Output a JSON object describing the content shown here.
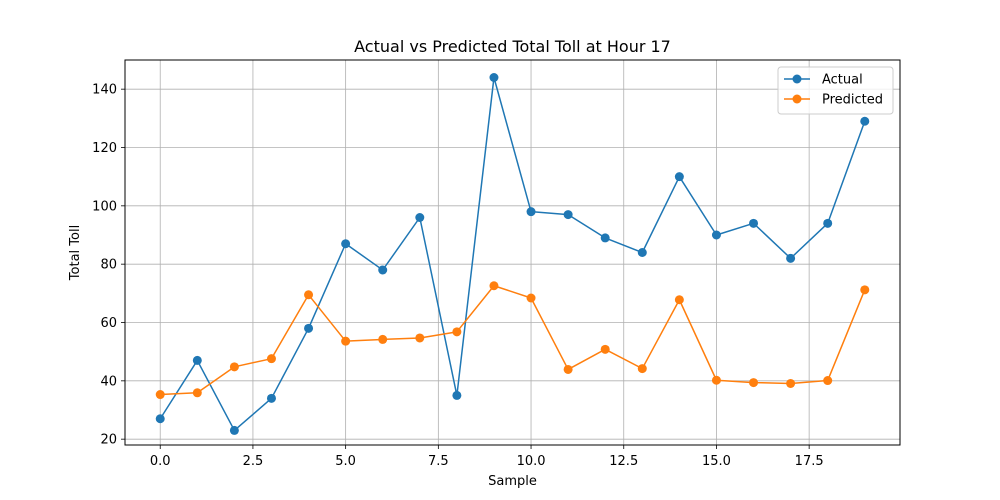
{
  "chart_data": {
    "type": "line",
    "title": "Actual vs Predicted Total Toll at Hour 17",
    "xlabel": "Sample",
    "ylabel": "Total Toll",
    "xlim": [
      -0.95,
      19.95
    ],
    "ylim": [
      18.0,
      150.0
    ],
    "xticks": [
      0.0,
      2.5,
      5.0,
      7.5,
      10.0,
      12.5,
      15.0,
      17.5
    ],
    "xtick_labels": [
      "0.0",
      "2.5",
      "5.0",
      "7.5",
      "10.0",
      "12.5",
      "15.0",
      "17.5"
    ],
    "yticks": [
      20,
      40,
      60,
      80,
      100,
      120,
      140
    ],
    "ytick_labels": [
      "20",
      "40",
      "60",
      "80",
      "100",
      "120",
      "140"
    ],
    "grid": true,
    "legend_position": "top-right",
    "x": [
      0,
      1,
      2,
      3,
      4,
      5,
      6,
      7,
      8,
      9,
      10,
      11,
      12,
      13,
      14,
      15,
      16,
      17,
      18,
      19
    ],
    "series": [
      {
        "name": "Actual",
        "color": "#1f77b4",
        "values": [
          27,
          47,
          23,
          34,
          58,
          87,
          78,
          96,
          35,
          144,
          98,
          97,
          89,
          84,
          110,
          90,
          94,
          82,
          94,
          129
        ]
      },
      {
        "name": "Predicted",
        "color": "#ff7f0e",
        "values": [
          35.3,
          35.9,
          44.8,
          47.6,
          69.5,
          53.6,
          54.2,
          54.7,
          56.8,
          72.6,
          68.4,
          43.9,
          50.8,
          44.2,
          67.8,
          40.2,
          39.4,
          39.1,
          40.1,
          71.2
        ]
      }
    ]
  }
}
